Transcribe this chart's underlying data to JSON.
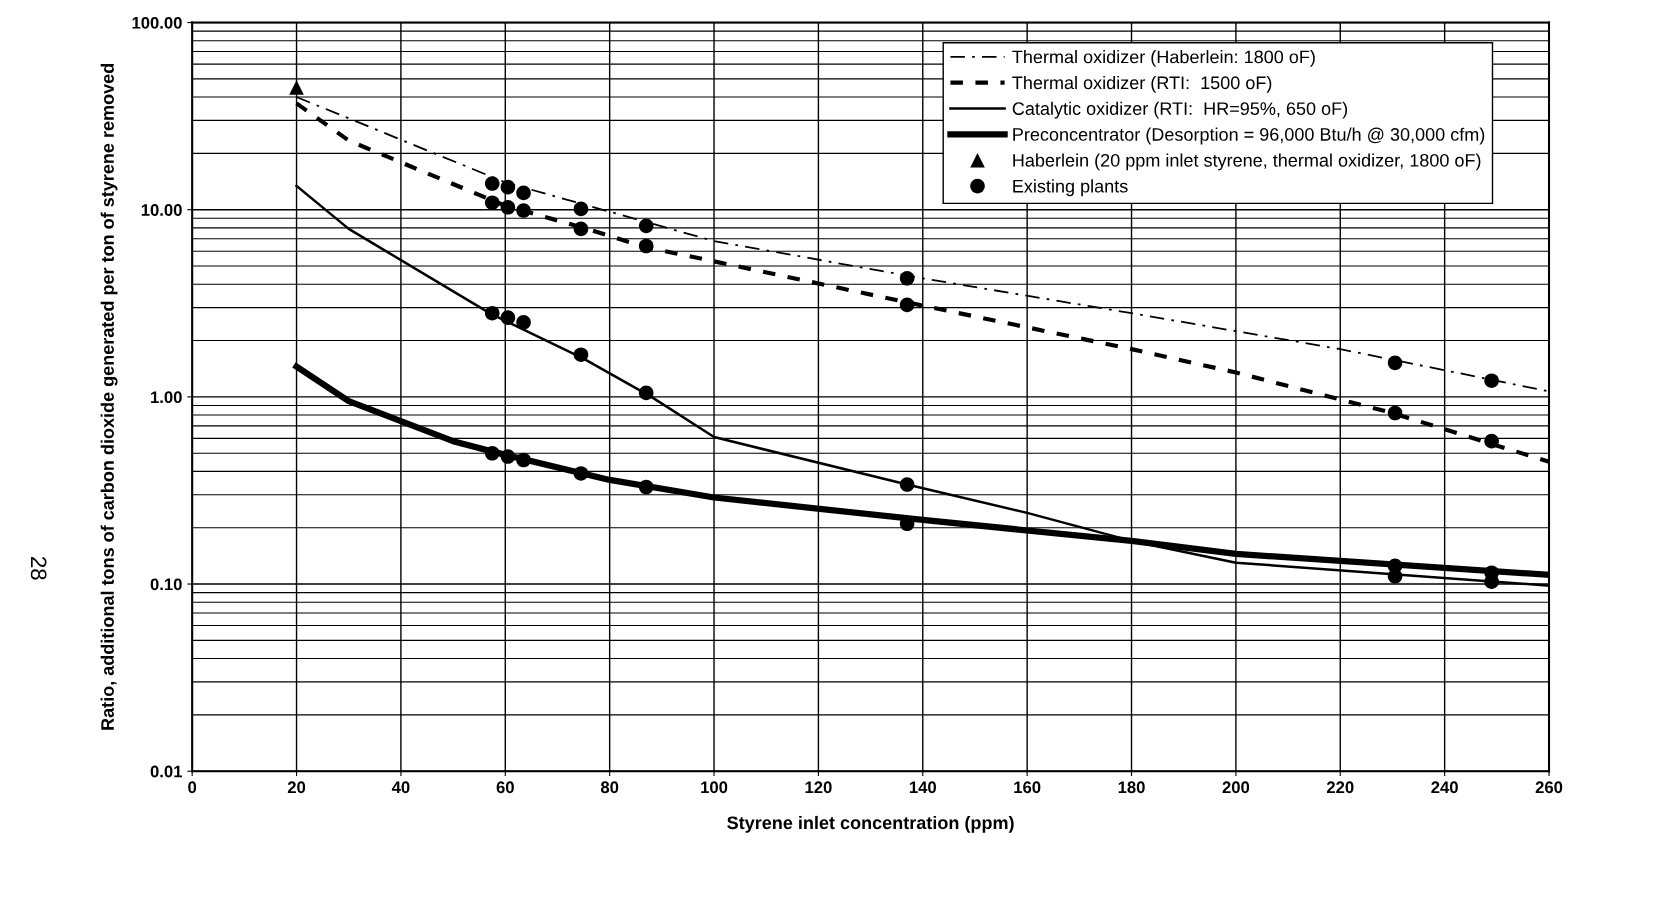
{
  "chart_data": {
    "type": "line",
    "xlabel": "Styrene inlet concentration (ppm)",
    "ylabel": "Ratio, additional tons of carbon dioxide generated per ton of styrene removed",
    "log": "y",
    "grid": true,
    "legend": "top right",
    "xlim": [
      0,
      260
    ],
    "xticks": [
      0,
      20,
      40,
      60,
      80,
      100,
      120,
      140,
      160,
      180,
      200,
      220,
      240,
      260
    ],
    "ylim": [
      0.01,
      100
    ],
    "yticks": [
      {
        "value": 0.01,
        "label": "0.01"
      },
      {
        "value": 0.1,
        "label": "0.10"
      },
      {
        "value": 1,
        "label": "1.00"
      },
      {
        "value": 10,
        "label": "10.00"
      },
      {
        "value": 100,
        "label": "100.00"
      }
    ],
    "annotations": [
      "28"
    ],
    "series": [
      {
        "name": "Thermal oxidizer (Haberlein: 1800 oF)",
        "line_style": "dashdot",
        "marker": "none",
        "color": "#000000",
        "x": [
          20,
          60,
          100,
          140,
          180,
          220,
          260
        ],
        "values": [
          40,
          14,
          6.8,
          4.3,
          2.8,
          1.8,
          1.07
        ]
      },
      {
        "name": "Thermal oxidizer (RTI:  1500 oF)",
        "line_style": "dashed",
        "marker": "none",
        "color": "#000000",
        "x": [
          20,
          30,
          60,
          75,
          87,
          100,
          137,
          180,
          200,
          230,
          260
        ],
        "values": [
          37,
          23.4,
          10.5,
          8,
          6.3,
          5.3,
          3.2,
          1.8,
          1.35,
          0.82,
          0.45
        ]
      },
      {
        "name": "Catalytic oxidizer (RTI:  HR=95%, 650 oF)",
        "line_style": "solid",
        "marker": "none",
        "color": "#000000",
        "x": [
          20,
          30,
          57,
          75,
          88,
          100,
          137,
          160,
          180,
          200,
          260
        ],
        "values": [
          13.4,
          7.9,
          2.8,
          1.6,
          1.0,
          0.61,
          0.34,
          0.24,
          0.17,
          0.13,
          0.098
        ]
      },
      {
        "name": "Preconcentrator (Desorption = 96,000 Btu/h @ 30,000 cfm)",
        "line_style": "solid",
        "marker": "none",
        "color": "#000000",
        "x": [
          20,
          30,
          50,
          60,
          80,
          100,
          140,
          180,
          200,
          260
        ],
        "values": [
          1.45,
          0.95,
          0.58,
          0.49,
          0.36,
          0.29,
          0.22,
          0.17,
          0.145,
          0.112
        ]
      },
      {
        "name": "Haberlein (20 ppm inlet styrene, thermal oxidizer, 1800 oF)",
        "type": "scatter",
        "marker": "triangle",
        "color": "#000000",
        "x": [
          20
        ],
        "values": [
          45
        ]
      },
      {
        "name": "Existing plants",
        "type": "scatter",
        "marker": "circle",
        "color": "#000000",
        "x": [
          57.5,
          60.5,
          63.5,
          57.5,
          60.5,
          63.5,
          74.5,
          74.5,
          87,
          87,
          137,
          137,
          230.5,
          230.5,
          249,
          249,
          57.5,
          60.5,
          63.5,
          74.5,
          87,
          137,
          230.5,
          249,
          57.5,
          60.5,
          63.5,
          74.5,
          87,
          137,
          230.5,
          249
        ],
        "values": [
          13.8,
          13.2,
          12.3,
          10.9,
          10.3,
          9.9,
          10.1,
          7.9,
          8.2,
          6.4,
          4.3,
          3.1,
          1.52,
          0.82,
          1.22,
          0.58,
          2.8,
          2.65,
          2.5,
          1.68,
          1.05,
          0.34,
          0.125,
          0.115,
          0.5,
          0.48,
          0.46,
          0.39,
          0.33,
          0.21,
          0.11,
          0.103
        ]
      }
    ]
  }
}
